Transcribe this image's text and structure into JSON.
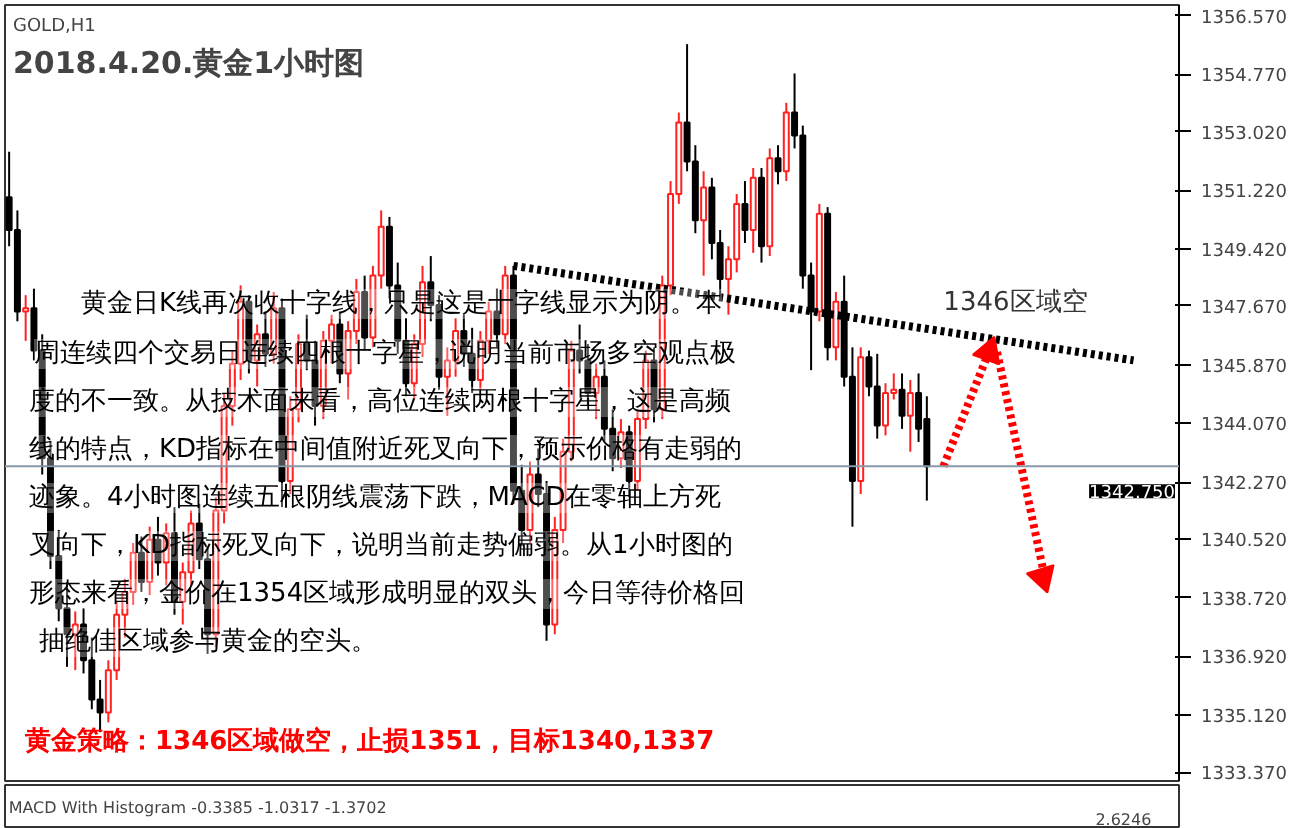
{
  "chart_data": {
    "type": "candlestick",
    "title": "2018.4.20.黄金1小时图",
    "subtitle": "GOLD,H1",
    "categories": [
      null,
      null,
      null,
      null,
      null,
      null,
      null,
      null,
      null,
      null,
      null,
      null,
      null,
      null,
      null,
      null,
      null,
      null,
      null,
      null,
      null,
      null,
      null,
      null,
      null,
      null,
      null,
      null,
      null,
      null,
      null,
      null,
      null,
      null,
      null,
      null,
      null,
      null,
      null,
      null,
      null,
      null,
      null,
      null,
      null,
      null,
      null,
      null,
      null,
      null,
      null,
      null,
      null,
      null,
      null,
      null,
      null,
      null,
      null,
      null,
      null,
      null,
      null,
      null,
      null,
      null,
      null,
      null,
      null,
      null,
      null,
      null,
      null,
      null,
      null,
      null,
      null,
      null,
      null,
      null,
      null,
      null,
      null,
      null,
      null,
      null,
      null,
      null,
      null,
      null,
      null,
      null,
      null,
      null,
      null,
      null,
      null,
      null,
      null,
      null,
      null,
      null,
      null,
      null,
      null,
      null,
      null,
      null,
      null,
      null,
      null,
      null,
      null,
      null,
      null,
      null,
      null,
      null,
      null,
      null,
      null,
      null,
      null,
      null,
      null,
      null,
      null,
      null,
      null,
      null,
      null,
      null,
      null,
      null,
      null,
      null,
      null,
      null,
      null,
      null,
      null,
      null
    ],
    "ohlc": [
      [
        1351.0,
        1352.4,
        1349.5,
        1350.0
      ],
      [
        1350.0,
        1350.6,
        1347.2,
        1347.5
      ],
      [
        1347.5,
        1348.0,
        1346.6,
        1347.6
      ],
      [
        1347.6,
        1348.2,
        1346.0,
        1346.3
      ],
      [
        1346.3,
        1346.8,
        1342.5,
        1343.0
      ],
      [
        1343.0,
        1343.5,
        1339.6,
        1340.0
      ],
      [
        1340.0,
        1340.8,
        1338.0,
        1338.4
      ],
      [
        1338.4,
        1339.2,
        1336.6,
        1337.6
      ],
      [
        1337.6,
        1338.3,
        1336.5,
        1337.9
      ],
      [
        1337.9,
        1338.4,
        1336.4,
        1336.8
      ],
      [
        1336.8,
        1337.5,
        1335.3,
        1335.6
      ],
      [
        1335.6,
        1336.2,
        1334.6,
        1335.2
      ],
      [
        1335.2,
        1336.8,
        1334.9,
        1336.5
      ],
      [
        1336.5,
        1338.6,
        1336.2,
        1338.2
      ],
      [
        1338.2,
        1339.3,
        1337.5,
        1338.9
      ],
      [
        1338.9,
        1340.4,
        1338.5,
        1340.1
      ],
      [
        1340.1,
        1340.6,
        1338.9,
        1339.2
      ],
      [
        1339.2,
        1340.9,
        1338.8,
        1340.5
      ],
      [
        1340.5,
        1341.2,
        1339.4,
        1339.8
      ],
      [
        1339.8,
        1341.0,
        1339.1,
        1340.7
      ],
      [
        1340.7,
        1341.5,
        1338.2,
        1338.6
      ],
      [
        1338.6,
        1339.8,
        1337.9,
        1339.5
      ],
      [
        1339.5,
        1341.4,
        1339.1,
        1341.0
      ],
      [
        1341.0,
        1341.6,
        1339.6,
        1339.9
      ],
      [
        1339.9,
        1340.3,
        1337.0,
        1337.6
      ],
      [
        1337.6,
        1341.8,
        1337.2,
        1341.4
      ],
      [
        1341.4,
        1345.0,
        1341.0,
        1344.6
      ],
      [
        1344.6,
        1346.3,
        1344.0,
        1345.9
      ],
      [
        1345.9,
        1348.3,
        1345.4,
        1347.8
      ],
      [
        1347.8,
        1348.0,
        1345.6,
        1346.0
      ],
      [
        1346.0,
        1347.1,
        1345.2,
        1346.8
      ],
      [
        1346.8,
        1347.5,
        1345.8,
        1346.2
      ],
      [
        1346.2,
        1348.1,
        1345.9,
        1347.6
      ],
      [
        1347.6,
        1347.9,
        1341.5,
        1342.3
      ],
      [
        1342.3,
        1344.9,
        1341.9,
        1344.5
      ],
      [
        1344.5,
        1346.8,
        1344.1,
        1346.5
      ],
      [
        1346.5,
        1347.4,
        1345.7,
        1346.0
      ],
      [
        1346.0,
        1346.6,
        1344.0,
        1344.6
      ],
      [
        1344.6,
        1346.9,
        1344.2,
        1346.6
      ],
      [
        1346.6,
        1347.4,
        1345.9,
        1347.1
      ],
      [
        1347.1,
        1347.5,
        1345.3,
        1345.6
      ],
      [
        1345.6,
        1347.2,
        1344.8,
        1346.9
      ],
      [
        1346.9,
        1348.5,
        1346.5,
        1348.1
      ],
      [
        1348.1,
        1348.6,
        1346.3,
        1346.7
      ],
      [
        1346.7,
        1348.9,
        1346.4,
        1348.6
      ],
      [
        1348.6,
        1350.6,
        1348.2,
        1350.1
      ],
      [
        1350.1,
        1350.4,
        1347.9,
        1348.3
      ],
      [
        1348.3,
        1349.0,
        1346.2,
        1346.6
      ],
      [
        1346.6,
        1347.3,
        1344.9,
        1345.3
      ],
      [
        1345.3,
        1346.8,
        1344.8,
        1346.5
      ],
      [
        1346.5,
        1348.9,
        1346.1,
        1348.4
      ],
      [
        1348.4,
        1349.2,
        1347.2,
        1347.7
      ],
      [
        1347.7,
        1348.0,
        1345.1,
        1345.5
      ],
      [
        1345.5,
        1346.4,
        1344.3,
        1346.0
      ],
      [
        1346.0,
        1347.3,
        1345.5,
        1346.9
      ],
      [
        1346.9,
        1347.4,
        1345.8,
        1346.2
      ],
      [
        1346.2,
        1347.0,
        1345.0,
        1345.4
      ],
      [
        1345.4,
        1346.9,
        1345.1,
        1346.6
      ],
      [
        1346.6,
        1347.8,
        1346.2,
        1347.5
      ],
      [
        1347.5,
        1348.2,
        1346.4,
        1346.8
      ],
      [
        1346.8,
        1348.9,
        1346.5,
        1348.6
      ],
      [
        1348.6,
        1348.9,
        1341.6,
        1342.0
      ],
      [
        1342.0,
        1342.8,
        1340.3,
        1340.8
      ],
      [
        1340.8,
        1342.9,
        1340.4,
        1342.5
      ],
      [
        1342.5,
        1343.3,
        1341.5,
        1341.9
      ],
      [
        1341.9,
        1342.3,
        1337.4,
        1337.9
      ],
      [
        1337.9,
        1341.2,
        1337.6,
        1340.8
      ],
      [
        1340.8,
        1343.6,
        1340.4,
        1343.2
      ],
      [
        1343.2,
        1346.6,
        1342.9,
        1346.3
      ],
      [
        1346.3,
        1347.1,
        1345.6,
        1346.0
      ],
      [
        1346.0,
        1346.5,
        1344.6,
        1345.0
      ],
      [
        1345.0,
        1345.9,
        1344.2,
        1345.5
      ],
      [
        1345.5,
        1346.0,
        1343.5,
        1343.9
      ],
      [
        1343.9,
        1344.5,
        1342.6,
        1343.0
      ],
      [
        1343.0,
        1344.2,
        1342.7,
        1343.8
      ],
      [
        1343.8,
        1344.0,
        1341.8,
        1342.3
      ],
      [
        1342.3,
        1344.5,
        1342.0,
        1344.2
      ],
      [
        1344.2,
        1346.3,
        1343.9,
        1346.0
      ],
      [
        1346.0,
        1346.4,
        1344.1,
        1344.5
      ],
      [
        1344.5,
        1348.6,
        1344.2,
        1348.3
      ],
      [
        1348.3,
        1351.5,
        1348.0,
        1351.1
      ],
      [
        1351.1,
        1353.6,
        1350.8,
        1353.3
      ],
      [
        1353.3,
        1355.7,
        1351.8,
        1352.1
      ],
      [
        1352.1,
        1352.6,
        1349.9,
        1350.3
      ],
      [
        1350.3,
        1351.8,
        1348.6,
        1351.3
      ],
      [
        1351.3,
        1351.6,
        1349.1,
        1349.6
      ],
      [
        1349.6,
        1350.0,
        1347.9,
        1348.5
      ],
      [
        1348.5,
        1349.5,
        1347.4,
        1349.1
      ],
      [
        1349.1,
        1351.1,
        1348.7,
        1350.8
      ],
      [
        1350.8,
        1351.5,
        1349.6,
        1350.0
      ],
      [
        1350.0,
        1351.9,
        1349.3,
        1351.6
      ],
      [
        1351.6,
        1351.9,
        1349.0,
        1349.5
      ],
      [
        1349.5,
        1352.5,
        1349.2,
        1352.2
      ],
      [
        1352.2,
        1352.6,
        1351.4,
        1351.8
      ],
      [
        1351.8,
        1353.9,
        1351.5,
        1353.6
      ],
      [
        1353.6,
        1354.8,
        1352.5,
        1352.9
      ],
      [
        1352.9,
        1353.2,
        1348.2,
        1348.6
      ],
      [
        1348.6,
        1349.0,
        1345.7,
        1347.5
      ],
      [
        1347.5,
        1350.8,
        1347.2,
        1350.5
      ],
      [
        1350.5,
        1350.7,
        1346.0,
        1346.4
      ],
      [
        1346.4,
        1348.1,
        1346.0,
        1347.8
      ],
      [
        1347.8,
        1348.6,
        1345.2,
        1345.5
      ],
      [
        1345.5,
        1346.4,
        1340.9,
        1342.3
      ],
      [
        1342.3,
        1346.4,
        1341.9,
        1346.1
      ],
      [
        1346.1,
        1346.3,
        1344.9,
        1345.2
      ],
      [
        1345.2,
        1346.2,
        1343.6,
        1344.0
      ],
      [
        1344.0,
        1345.3,
        1343.7,
        1345.0
      ],
      [
        1345.0,
        1345.6,
        1344.8,
        1345.1
      ],
      [
        1345.1,
        1345.6,
        1343.9,
        1344.3
      ],
      [
        1344.3,
        1345.4,
        1343.2,
        1345.0
      ],
      [
        1345.0,
        1345.6,
        1343.5,
        1343.9
      ],
      [
        1344.2,
        1344.9,
        1341.7,
        1342.75
      ],
      null,
      null,
      null,
      null,
      null,
      null,
      null,
      null,
      null,
      null,
      null,
      null,
      null,
      null,
      null,
      null,
      null,
      null,
      null,
      null,
      null,
      null,
      null,
      null,
      null,
      null,
      null,
      null,
      null,
      null
    ],
    "ylim": [
      1333.1,
      1356.9
    ],
    "yticks": [
      {
        "value": 1356.57,
        "label": "1356.570"
      },
      {
        "value": 1354.77,
        "label": "1354.770"
      },
      {
        "value": 1353.02,
        "label": "1353.020"
      },
      {
        "value": 1351.22,
        "label": "1351.220"
      },
      {
        "value": 1349.42,
        "label": "1349.420"
      },
      {
        "value": 1347.67,
        "label": "1347.670"
      },
      {
        "value": 1345.87,
        "label": "1345.870"
      },
      {
        "value": 1344.07,
        "label": "1344.070"
      },
      {
        "value": 1342.27,
        "label": "1342.270"
      },
      {
        "value": 1340.52,
        "label": "1340.520"
      },
      {
        "value": 1338.72,
        "label": "1338.720"
      },
      {
        "value": 1336.92,
        "label": "1336.920"
      },
      {
        "value": 1335.12,
        "label": "1335.120"
      },
      {
        "value": 1333.37,
        "label": "1333.370"
      }
    ],
    "ref_lines": [
      {
        "axis": "y",
        "value": 1342.75,
        "label": "1342.750",
        "color": "#8899aa"
      }
    ],
    "tick_labels": "y",
    "grid": false,
    "annotations": [
      "黄金日K线再次收十字线，只是这是十字线显示为阴。本",
      "周连续四个交易日连续四根十字星，说明当前市场多空观点极",
      "度的不一致。从技术面来看，高位连续两根十字星，这是高频",
      "线的特点，KD指标在中间值附近死叉向下，预示价格有走弱的",
      "迹象。4小时图连续五根阴线震荡下跌，MACD在零轴上方死",
      "叉向下，KD指标死叉向下，说明当前走势偏弱。从1小时图的",
      "形态来看，金价在1354区域形成明显的双头，今日等待价格回",
      "抽绝佳区域参与黄金的空头。",
      "黄金策略：1346区域做空，止损1351，目标1340,1337",
      "1346区域空",
      "MACD With Histogram -0.3385 -1.0317 -1.3702",
      "2.6246"
    ]
  }
}
